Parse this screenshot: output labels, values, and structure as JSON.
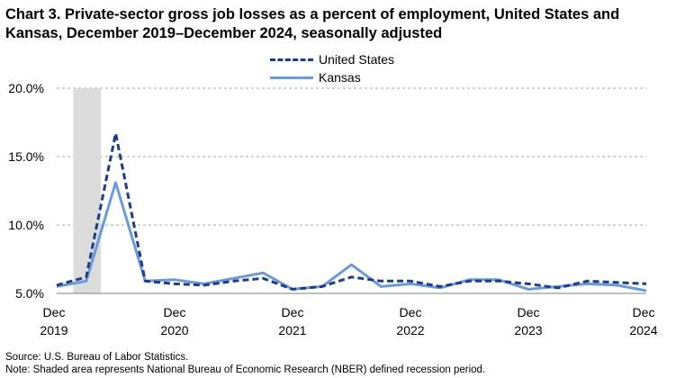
{
  "chart_data": {
    "type": "line",
    "title": "Chart 3. Private-sector gross job losses as a percent of employment, United States and Kansas, December 2019–December 2024, seasonally adjusted",
    "xlabel": "",
    "ylabel": "",
    "x": [
      "Dec 2019",
      "Mar 2020",
      "Jun 2020",
      "Sep 2020",
      "Dec 2020",
      "Mar 2021",
      "Jun 2021",
      "Sep 2021",
      "Dec 2021",
      "Mar 2022",
      "Jun 2022",
      "Sep 2022",
      "Dec 2022",
      "Mar 2023",
      "Jun 2023",
      "Sep 2023",
      "Dec 2023",
      "Mar 2024",
      "Jun 2024",
      "Sep 2024",
      "Dec 2024"
    ],
    "x_tick_labels": [
      {
        "month": "Dec",
        "year": "2019",
        "index": 0
      },
      {
        "month": "Dec",
        "year": "2020",
        "index": 4
      },
      {
        "month": "Dec",
        "year": "2021",
        "index": 8
      },
      {
        "month": "Dec",
        "year": "2022",
        "index": 12
      },
      {
        "month": "Dec",
        "year": "2023",
        "index": 16
      },
      {
        "month": "Dec",
        "year": "2024",
        "index": 20
      }
    ],
    "y_ticks": [
      5.0,
      10.0,
      15.0,
      20.0
    ],
    "y_tick_labels": [
      "5.0%",
      "10.0%",
      "15.0%",
      "20.0%"
    ],
    "ylim": [
      5,
      20
    ],
    "grid": "horizontal dashed",
    "legend_placement": "top-center",
    "recession_shading": {
      "from_index": 0.5,
      "to_index": 1.5
    },
    "series": [
      {
        "name": "United States",
        "style": "dashed",
        "color": "#1f3c88",
        "values": [
          5.6,
          6.2,
          16.7,
          5.9,
          5.7,
          5.6,
          5.9,
          6.1,
          5.3,
          5.5,
          6.2,
          5.9,
          5.9,
          5.5,
          5.9,
          5.9,
          5.7,
          5.4,
          5.9,
          5.8,
          5.7
        ]
      },
      {
        "name": "Kansas",
        "style": "solid",
        "color": "#6b9bd6",
        "values": [
          5.5,
          5.9,
          13.1,
          5.9,
          6.0,
          5.7,
          6.1,
          6.5,
          5.3,
          5.5,
          7.1,
          5.5,
          5.7,
          5.4,
          6.0,
          6.0,
          5.3,
          5.5,
          5.7,
          5.6,
          5.2
        ]
      }
    ]
  },
  "notes": {
    "source": "Source: U.S. Bureau of Labor Statistics.",
    "footnote": "Note: Shaded area represents National Bureau of Economic Research (NBER) defined  recession period."
  }
}
